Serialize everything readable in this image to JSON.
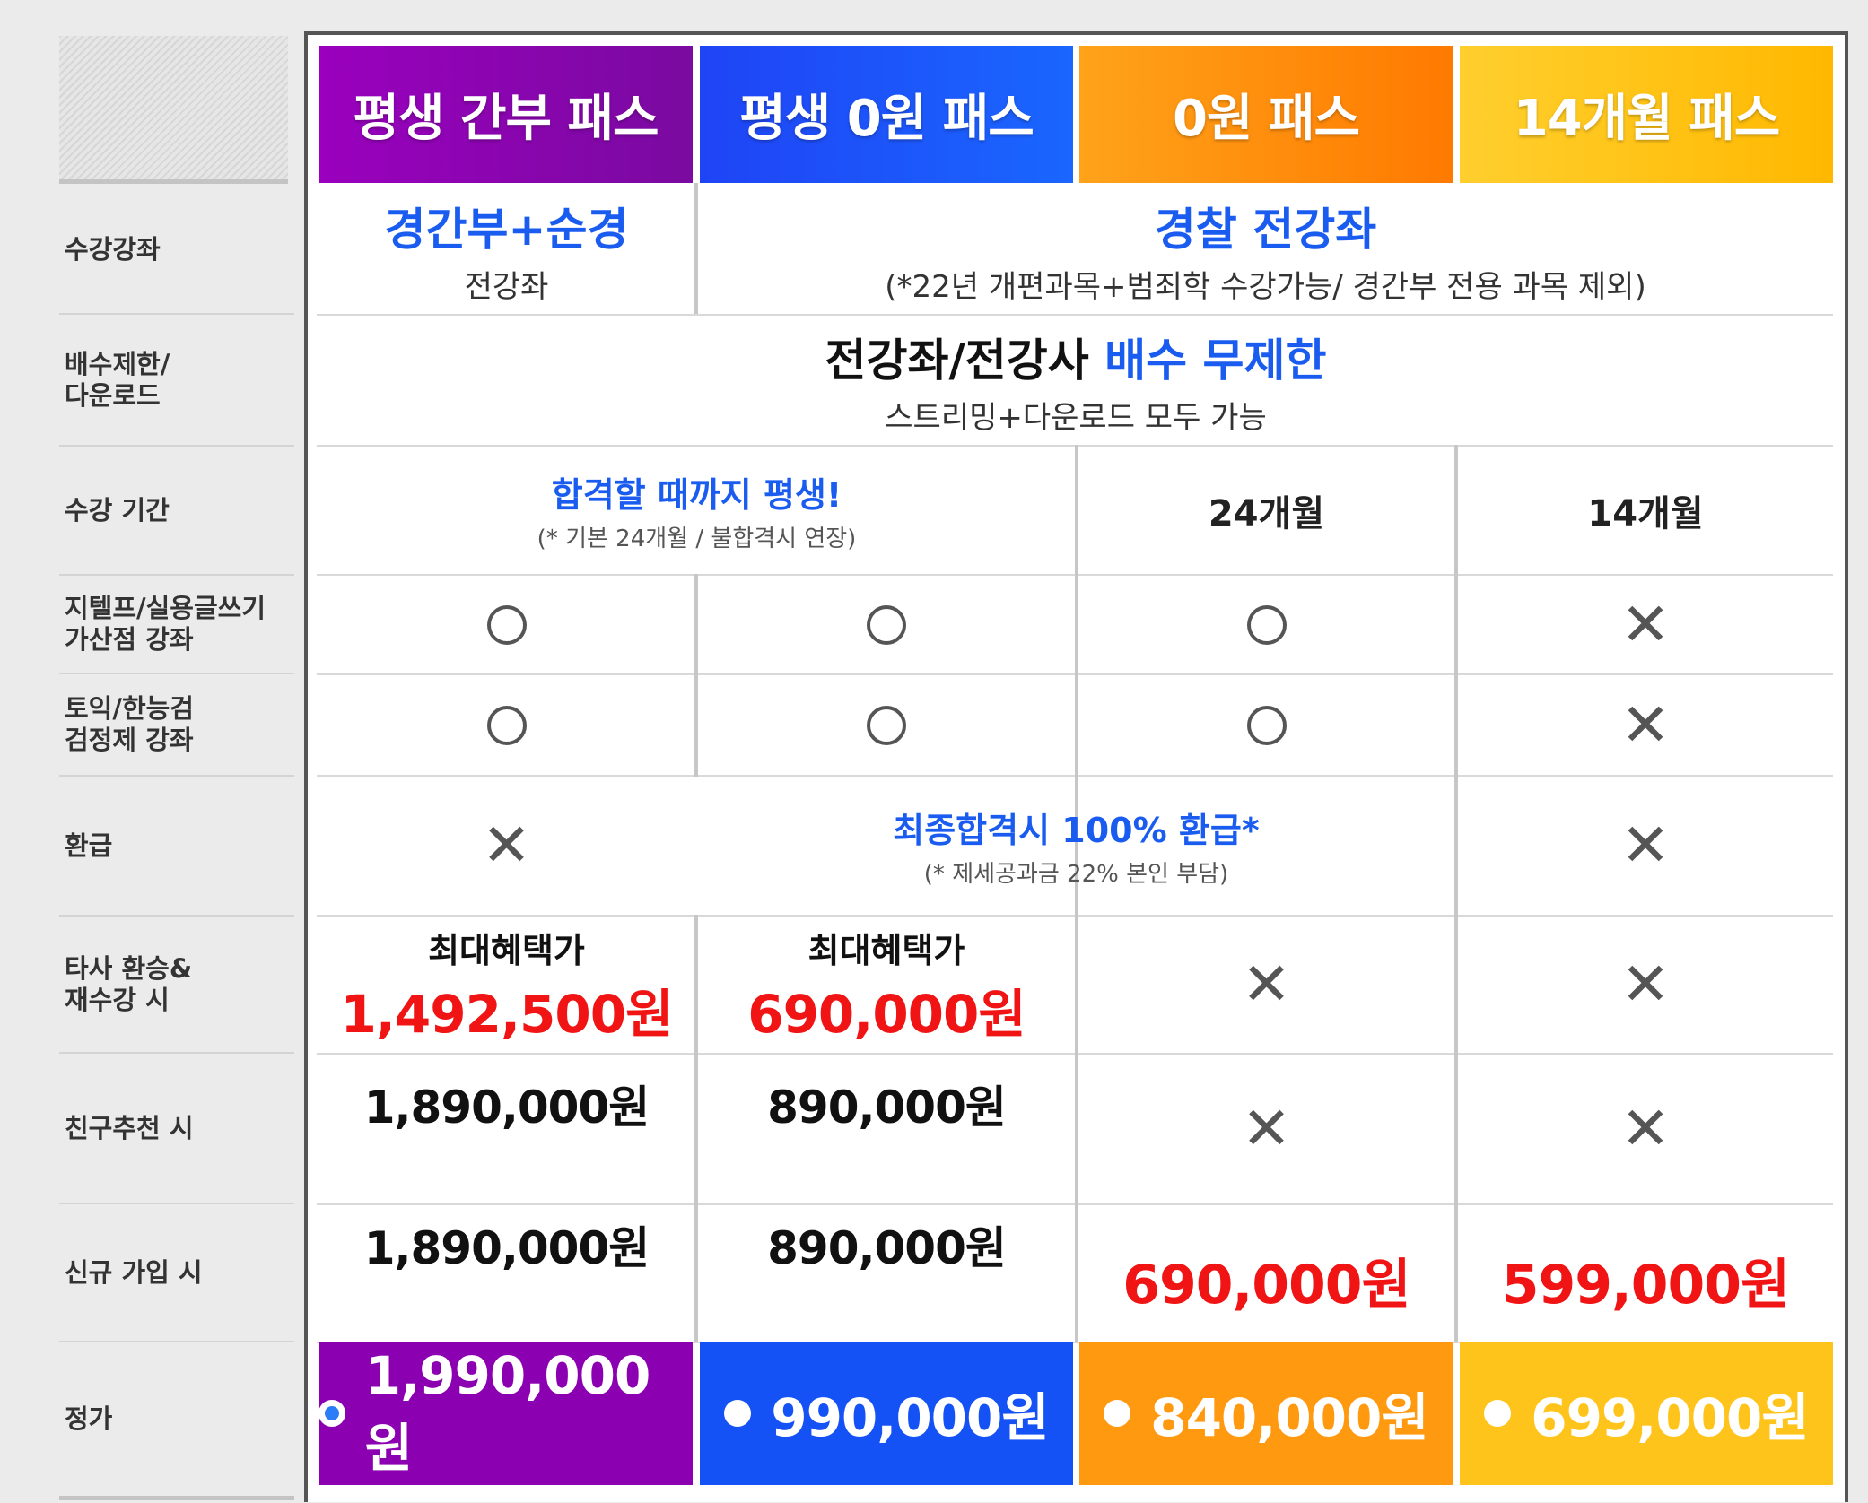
{
  "plans": [
    {
      "name": "평생 간부 패스",
      "color": "#8b00b0"
    },
    {
      "name": "평생 0원 패스",
      "color": "#1552f5"
    },
    {
      "name": "0원 패스",
      "color": "#ff8a00"
    },
    {
      "name": "14개월 패스",
      "color": "#ffc000"
    }
  ],
  "rows": {
    "courses": "수강강좌",
    "replay": "배수제한/\n다운로드",
    "period": "수강 기간",
    "gtelp": "지텔프/실용글쓰기\n가산점 강좌",
    "toeic": "토익/한능검\n검정제 강좌",
    "refund": "환급",
    "transfer": "타사 환승&\n재수강 시",
    "referral": "친구추천 시",
    "signup": "신규 가입 시",
    "list_price": "정가"
  },
  "courses": {
    "p1_title": "경간부+순경",
    "p1_sub": "전강좌",
    "rest_title": "경찰 전강좌",
    "rest_sub": "(*22년 개편과목+범죄학 수강가능/ 경간부 전용 과목 제외)"
  },
  "replay": {
    "title_black": "전강좌/전강사 ",
    "title_blue": "배수 무제한",
    "sub": "스트리밍+다운로드 모두 가능"
  },
  "period": {
    "lifetime": "합격할 때까지 평생!",
    "lifetime_note": "(* 기본 24개월 / 불합격시 연장)",
    "p3": "24개월",
    "p4": "14개월"
  },
  "refund": {
    "title": "최종합격시 100% 환급*",
    "note": "(* 제세공과금 22% 본인 부담)"
  },
  "transfer": {
    "label": "최대혜택가",
    "p1": "1,492,500원",
    "p2": "690,000원"
  },
  "referral": {
    "p1": "1,890,000원",
    "p2": "890,000원"
  },
  "signup": {
    "p1": "1,890,000원",
    "p2": "890,000원",
    "p3": "690,000원",
    "p4": "599,000원"
  },
  "prices": [
    "1,990,000원",
    "990,000원",
    "840,000원",
    "699,000원"
  ],
  "symbols": {
    "yes": "circle",
    "no": "✕"
  }
}
